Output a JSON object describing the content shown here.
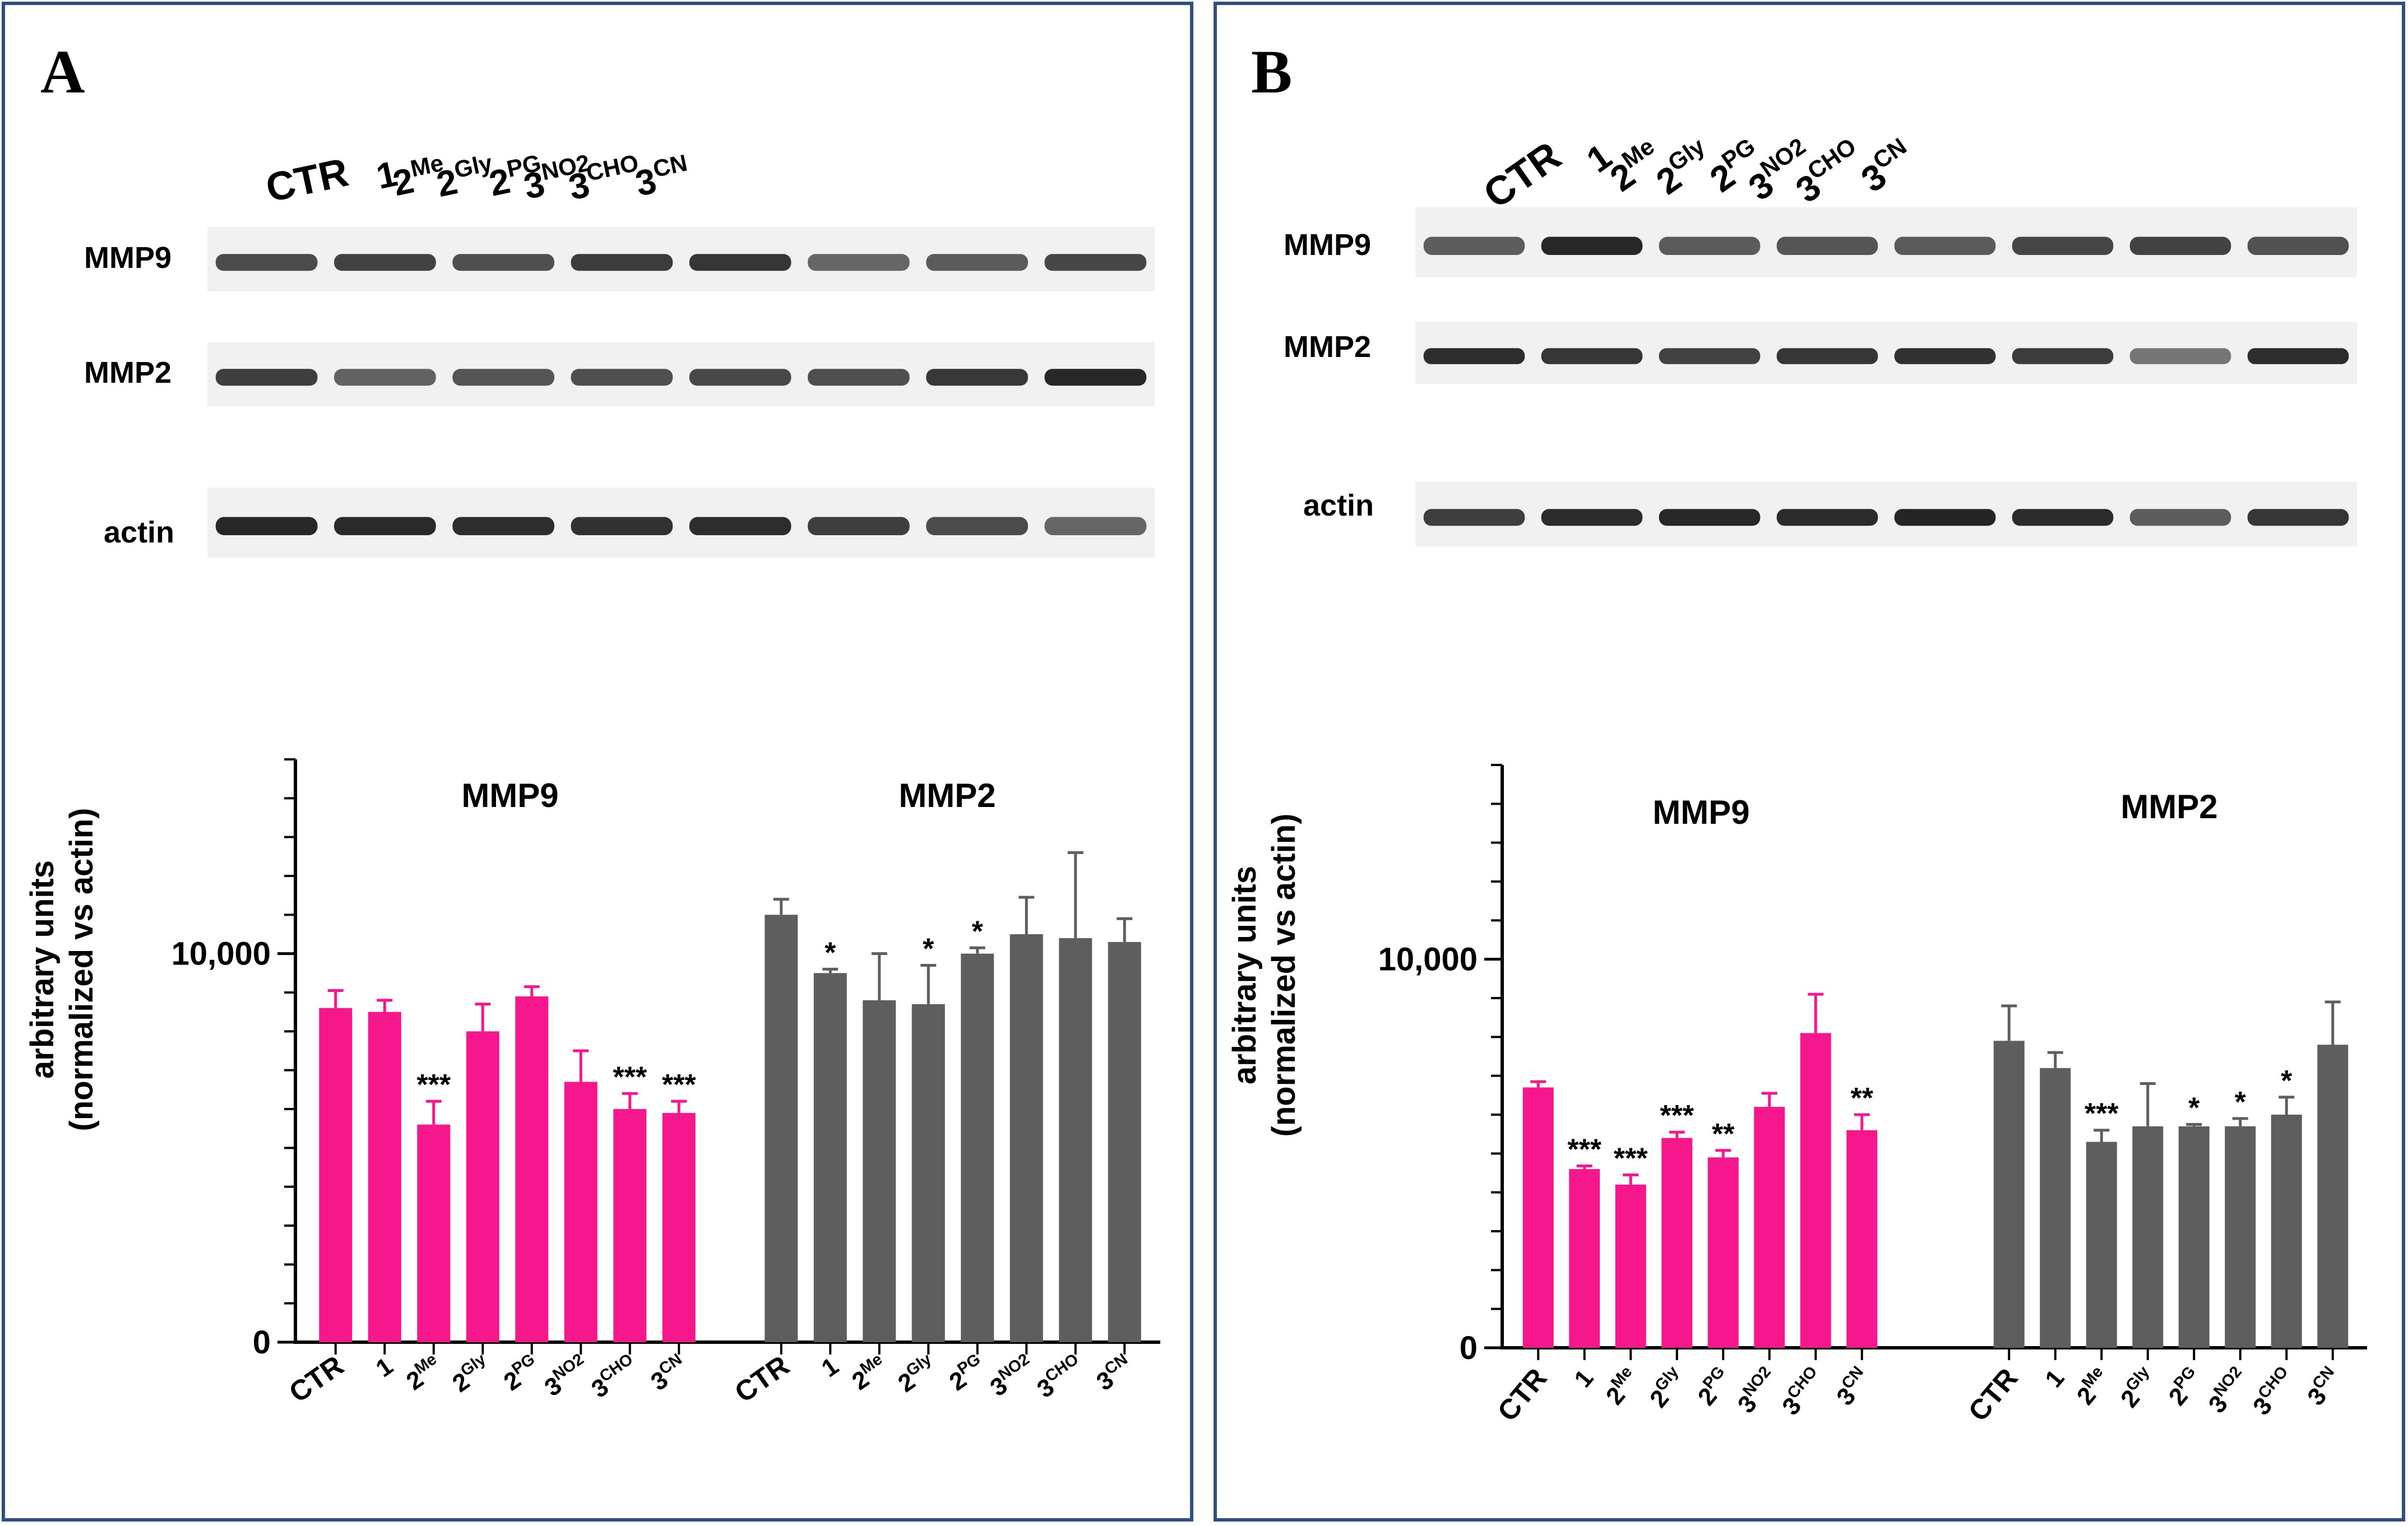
{
  "colors": {
    "panel_border": "#2e4f86",
    "mmp9_bar": "#f5178b",
    "mmp2_bar": "#5e5e5e",
    "axis": "#000000",
    "band": "#1e1e1e",
    "blot_bg": "#f1f1f1"
  },
  "panels": [
    {
      "letter": "A",
      "blot": {
        "lanes": [
          {
            "base": "CTR",
            "sup": ""
          },
          {
            "base": "1",
            "sup": ""
          },
          {
            "base": "2",
            "sup": "Me"
          },
          {
            "base": "2",
            "sup": "Gly"
          },
          {
            "base": "2",
            "sup": "PG"
          },
          {
            "base": "3",
            "sup": "NO2"
          },
          {
            "base": "3",
            "sup": "CHO"
          },
          {
            "base": "3",
            "sup": "CN"
          }
        ],
        "rows": [
          {
            "label": "MMP9",
            "intensity": [
              0.72,
              0.78,
              0.7,
              0.82,
              0.85,
              0.55,
              0.62,
              0.75
            ]
          },
          {
            "label": "MMP2",
            "intensity": [
              0.8,
              0.58,
              0.66,
              0.7,
              0.74,
              0.7,
              0.84,
              0.95
            ]
          },
          {
            "label": "actin",
            "intensity": [
              0.95,
              0.93,
              0.9,
              0.88,
              0.9,
              0.8,
              0.72,
              0.55
            ]
          }
        ]
      },
      "chart_data": {
        "type": "bar",
        "ylabel": "arbitrary units",
        "ylabel2": "(normalized vs actin)",
        "ylim": [
          0,
          15000
        ],
        "ytick_labels": [
          {
            "v": 0,
            "t": "0"
          },
          {
            "v": 10000,
            "t": "10,000"
          }
        ],
        "minor_ticks": [
          1000,
          2000,
          3000,
          4000,
          5000,
          6000,
          7000,
          8000,
          9000,
          11000,
          12000,
          13000,
          14000,
          15000
        ],
        "categories": [
          {
            "base": "CTR",
            "sup": ""
          },
          {
            "base": "1",
            "sup": ""
          },
          {
            "base": "2",
            "sup": "Me"
          },
          {
            "base": "2",
            "sup": "Gly"
          },
          {
            "base": "2",
            "sup": "PG"
          },
          {
            "base": "3",
            "sup": "NO2"
          },
          {
            "base": "3",
            "sup": "CHO"
          },
          {
            "base": "3",
            "sup": "CN"
          }
        ],
        "series": [
          {
            "name": "MMP9",
            "values": [
              8600,
              8500,
              5600,
              8000,
              8900,
              6700,
              6000,
              5900
            ],
            "errors": [
              450,
              300,
              600,
              700,
              250,
              800,
              400,
              300
            ],
            "sig": [
              "",
              "",
              "***",
              "",
              "",
              "",
              "***",
              "***"
            ]
          },
          {
            "name": "MMP2",
            "values": [
              11000,
              9500,
              8800,
              8700,
              10000,
              10500,
              10400,
              10300
            ],
            "errors": [
              400,
              100,
              1200,
              1000,
              150,
              950,
              2200,
              600
            ],
            "sig": [
              "",
              "*",
              "",
              "*",
              "*",
              "",
              "",
              ""
            ]
          }
        ]
      }
    },
    {
      "letter": "B",
      "blot": {
        "lanes": [
          {
            "base": "CTR",
            "sup": ""
          },
          {
            "base": "1",
            "sup": ""
          },
          {
            "base": "2",
            "sup": "Me"
          },
          {
            "base": "2",
            "sup": "Gly"
          },
          {
            "base": "2",
            "sup": "PG"
          },
          {
            "base": "3",
            "sup": "NO2"
          },
          {
            "base": "3",
            "sup": "CHO"
          },
          {
            "base": "3",
            "sup": "CN"
          }
        ],
        "rows": [
          {
            "label": "MMP9",
            "intensity": [
              0.6,
              0.95,
              0.62,
              0.65,
              0.62,
              0.75,
              0.78,
              0.68
            ]
          },
          {
            "label": "MMP2",
            "intensity": [
              0.9,
              0.85,
              0.78,
              0.85,
              0.88,
              0.82,
              0.45,
              0.9
            ]
          },
          {
            "label": "actin",
            "intensity": [
              0.8,
              0.92,
              0.95,
              0.92,
              0.96,
              0.92,
              0.6,
              0.85
            ]
          }
        ]
      },
      "chart_data": {
        "type": "bar",
        "ylabel": "arbitrary units",
        "ylabel2": "(normalized vs actin)",
        "ylim": [
          0,
          15000
        ],
        "ytick_labels": [
          {
            "v": 0,
            "t": "0"
          },
          {
            "v": 10000,
            "t": "10,000"
          }
        ],
        "minor_ticks": [
          1000,
          2000,
          3000,
          4000,
          5000,
          6000,
          7000,
          8000,
          9000,
          11000,
          12000,
          13000,
          14000,
          15000
        ],
        "categories": [
          {
            "base": "CTR",
            "sup": ""
          },
          {
            "base": "1",
            "sup": ""
          },
          {
            "base": "2",
            "sup": "Me"
          },
          {
            "base": "2",
            "sup": "Gly"
          },
          {
            "base": "2",
            "sup": "PG"
          },
          {
            "base": "3",
            "sup": "NO2"
          },
          {
            "base": "3",
            "sup": "CHO"
          },
          {
            "base": "3",
            "sup": "CN"
          }
        ],
        "series": [
          {
            "name": "MMP9",
            "values": [
              6700,
              4600,
              4200,
              5400,
              4900,
              6200,
              8100,
              5600
            ],
            "errors": [
              150,
              80,
              250,
              150,
              180,
              350,
              1000,
              400
            ],
            "sig": [
              "",
              "***",
              "***",
              "***",
              "**",
              "",
              "",
              "**"
            ]
          },
          {
            "name": "MMP2",
            "values": [
              7900,
              7200,
              5300,
              5700,
              5700,
              5700,
              6000,
              7800
            ],
            "errors": [
              900,
              400,
              300,
              1100,
              50,
              200,
              450,
              1100
            ],
            "sig": [
              "",
              "",
              "***",
              "",
              "*",
              "*",
              "*",
              ""
            ]
          }
        ]
      }
    }
  ]
}
